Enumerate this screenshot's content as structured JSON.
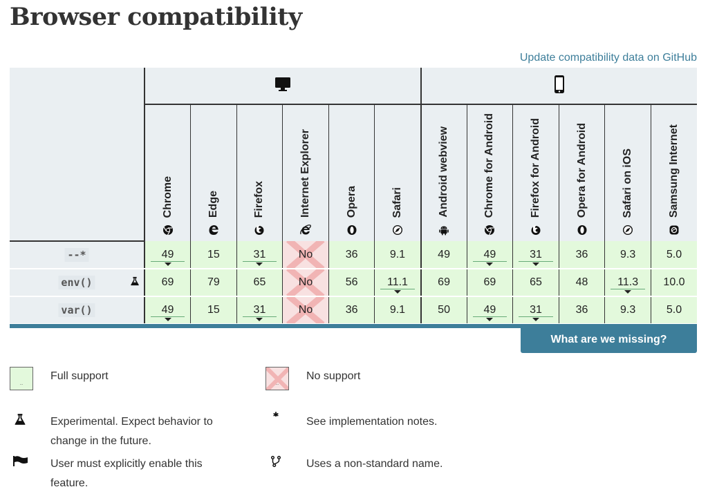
{
  "page": {
    "title": "Browser compatibility"
  },
  "links": {
    "github": "Update compatibility data on GitHub"
  },
  "platforms": [
    {
      "name": "desktop",
      "icon": "desktop-icon"
    },
    {
      "name": "mobile",
      "icon": "mobile-icon"
    }
  ],
  "browsers": [
    {
      "label": "Chrome",
      "icon": "chrome-icon"
    },
    {
      "label": "Edge",
      "icon": "edge-icon"
    },
    {
      "label": "Firefox",
      "icon": "firefox-icon"
    },
    {
      "label": "Internet Explorer",
      "icon": "ie-icon"
    },
    {
      "label": "Opera",
      "icon": "opera-icon"
    },
    {
      "label": "Safari",
      "icon": "safari-icon"
    },
    {
      "label": "Android webview",
      "icon": "android-icon"
    },
    {
      "label": "Chrome for Android",
      "icon": "chrome-icon"
    },
    {
      "label": "Firefox for Android",
      "icon": "firefox-icon"
    },
    {
      "label": "Opera for Android",
      "icon": "opera-icon"
    },
    {
      "label": "Safari on iOS",
      "icon": "safari-icon"
    },
    {
      "label": "Samsung Internet",
      "icon": "samsung-icon"
    }
  ],
  "features": [
    {
      "name": "--*",
      "experimental": false,
      "cells": [
        {
          "v": "49",
          "note": true
        },
        {
          "v": "15"
        },
        {
          "v": "31",
          "note": true
        },
        {
          "v": "No",
          "no": true
        },
        {
          "v": "36"
        },
        {
          "v": "9.1"
        },
        {
          "v": "49"
        },
        {
          "v": "49",
          "note": true
        },
        {
          "v": "31",
          "note": true
        },
        {
          "v": "36"
        },
        {
          "v": "9.3"
        },
        {
          "v": "5.0"
        }
      ]
    },
    {
      "name": "env()",
      "experimental": true,
      "cells": [
        {
          "v": "69"
        },
        {
          "v": "79"
        },
        {
          "v": "65"
        },
        {
          "v": "No",
          "no": true
        },
        {
          "v": "56"
        },
        {
          "v": "11.1",
          "note": true
        },
        {
          "v": "69"
        },
        {
          "v": "69"
        },
        {
          "v": "65"
        },
        {
          "v": "48"
        },
        {
          "v": "11.3",
          "note": true
        },
        {
          "v": "10.0"
        }
      ]
    },
    {
      "name": "var()",
      "experimental": false,
      "cells": [
        {
          "v": "49",
          "note": true
        },
        {
          "v": "15"
        },
        {
          "v": "31",
          "note": true
        },
        {
          "v": "No",
          "no": true
        },
        {
          "v": "36"
        },
        {
          "v": "9.1"
        },
        {
          "v": "50"
        },
        {
          "v": "49",
          "note": true
        },
        {
          "v": "31",
          "note": true
        },
        {
          "v": "36"
        },
        {
          "v": "9.3"
        },
        {
          "v": "5.0"
        }
      ]
    }
  ],
  "buttons": {
    "missing": "What are we missing?"
  },
  "legend": {
    "full_support": "Full support",
    "no_support": "No support",
    "experimental_1": "Experimental. Expect behavior to",
    "experimental_2": "change in the future.",
    "notes": "See implementation notes.",
    "flag_1": "User must explicitly enable this",
    "flag_2": "feature.",
    "nonstandard": "Uses a non-standard name.",
    "box_dots": ".."
  },
  "colors": {
    "accent": "#3d7e9a",
    "yes": "#e3f9dc",
    "no": "#f8e1e1",
    "header": "#eaeff2"
  }
}
